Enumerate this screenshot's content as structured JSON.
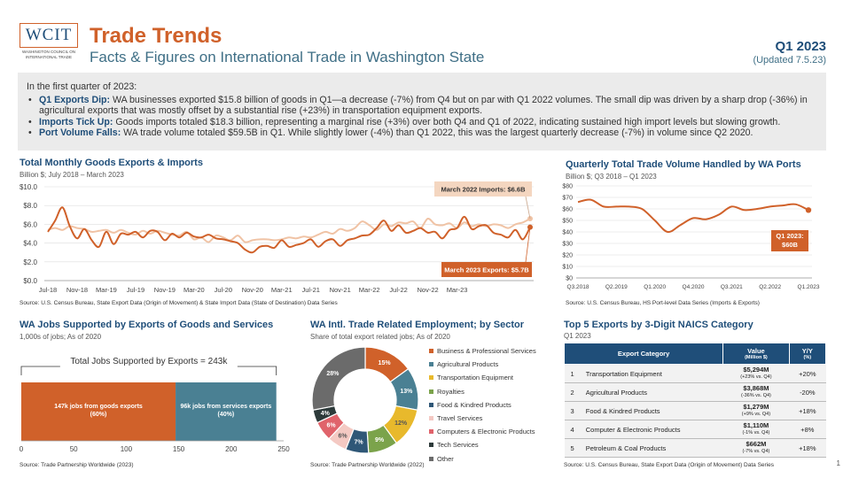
{
  "header": {
    "logo_text": "WCIT",
    "logo_sub": "WASHINGTON COUNCIL ON INTERNATIONAL TRADE",
    "title": "Trade Trends",
    "subtitle": "Facts & Figures on International Trade in Washington State",
    "quarter": "Q1 2023",
    "updated": "(Updated 7.5.23)"
  },
  "summary": {
    "intro": "In the first quarter of 2023:",
    "bullets": [
      {
        "lead": "Q1 Exports Dip:",
        "text": " WA businesses exported $15.8 billion of goods in Q1—a decrease (-7%) from Q4 but on par with Q1 2022 volumes. The small dip was driven by a sharp drop (-36%) in agricultural exports that was mostly offset by a substantial rise (+23%) in transportation equipment exports."
      },
      {
        "lead": "Imports Tick Up:",
        "text": " Goods imports totaled $18.3 billion, representing a marginal rise (+3%) over both Q4 and Q1 of 2022, indicating sustained high import levels but slowing growth."
      },
      {
        "lead": "Port Volume Falls:",
        "text": " WA trade volume totaled $59.5B in Q1. While slightly lower (-4%) than Q1 2022, this was the largest quarterly decrease (-7%) in volume since Q2 2020."
      }
    ]
  },
  "monthly": {
    "title": "Total Monthly Goods Exports & Imports",
    "subtitle": "Billion $; July 2018 – March 2023",
    "source": "Source: U.S. Census Bureau, State Export Data (Origin of Movement) & State Import Data (State of Destination) Data Series",
    "callout_imports": "March 2022 Imports: $6.6B",
    "callout_exports": "March 2023 Exports: $5.7B"
  },
  "quarterly": {
    "title": "Quarterly Total Trade Volume Handled by WA Ports",
    "subtitle": "Billion $; Q3 2018 – Q1 2023",
    "source": "Source: U.S. Census Bureau, HS Port-level Data Series (Imports & Exports)",
    "callout_line1": "Q1 2023:",
    "callout_line2": "$60B"
  },
  "jobs": {
    "title": "WA Jobs Supported by Exports of Goods and Services",
    "subtitle": "1,000s of jobs; As of 2020",
    "total_label": "Total Jobs Supported by Exports = 243k",
    "source": "Source: Trade Partnership Worldwide (2023)"
  },
  "sector": {
    "title": "WA Intl. Trade Related Employment; by Sector",
    "subtitle": "Share of total export related jobs; As of 2020",
    "source": "Source: Trade Partnership Worldwide (2022)"
  },
  "top5": {
    "title": "Top 5 Exports by 3-Digit NAICS Category",
    "subtitle": "Q1 2023",
    "source": "Source: U.S. Census Bureau, State Export Data (Origin of Movement) Data Series",
    "col_category": "Export Category",
    "col_value": "Value",
    "col_value_sub": "(Million $)",
    "col_yy": "Y/Y",
    "col_yy_sub": "(%)",
    "rows": [
      {
        "rank": "1",
        "category": "Transportation Equipment",
        "value": "$5,294M",
        "change": "(+23% vs. Q4)",
        "yy": "+20%"
      },
      {
        "rank": "2",
        "category": "Agricultural Products",
        "value": "$3,868M",
        "change": "(-36% vs. Q4)",
        "yy": "-20%"
      },
      {
        "rank": "3",
        "category": "Food & Kindred Products",
        "value": "$1,279M",
        "change": "(+9% vs. Q4)",
        "yy": "+18%"
      },
      {
        "rank": "4",
        "category": "Computer & Electronic Products",
        "value": "$1,110M",
        "change": "(-1% vs. Q4)",
        "yy": "+8%"
      },
      {
        "rank": "5",
        "category": "Petroleum & Coal Products",
        "value": "$662M",
        "change": "(-7% vs. Q4)",
        "yy": "+18%"
      }
    ]
  },
  "page_number": "1",
  "colors": {
    "orange": "#d0612a",
    "navy": "#1f4e79",
    "teal": "#4a8093",
    "peach": "#f0c3a5"
  },
  "chart_data": [
    {
      "type": "line",
      "title": "Total Monthly Goods Exports & Imports",
      "ylabel": "Billion $",
      "ylim": [
        0,
        10
      ],
      "yticks": [
        "$0.0",
        "$2.0",
        "$4.0",
        "$6.0",
        "$8.0",
        "$10.0"
      ],
      "xticks": [
        "Jul-18",
        "Nov-18",
        "Mar-19",
        "Jul-19",
        "Nov-19",
        "Mar-20",
        "Jul-20",
        "Nov-20",
        "Mar-21",
        "Jul-21",
        "Nov-21",
        "Mar-22",
        "Jul-22",
        "Nov-22",
        "Mar-23"
      ],
      "series": [
        {
          "name": "Exports",
          "color": "#d0612a",
          "values": [
            5.2,
            6.4,
            7.8,
            5.8,
            4.5,
            5.5,
            4.3,
            3.6,
            5.2,
            3.9,
            5.0,
            4.9,
            5.2,
            4.6,
            5.3,
            5.2,
            4.3,
            5.0,
            4.6,
            5.1,
            4.7,
            4.6,
            4.9,
            4.5,
            4.4,
            4.2,
            4.0,
            3.3,
            3.0,
            3.6,
            3.7,
            3.5,
            4.3,
            3.6,
            3.8,
            4.0,
            4.4,
            3.6,
            4.2,
            4.4,
            3.7,
            4.3,
            4.5,
            4.8,
            4.9,
            5.6,
            6.4,
            5.3,
            5.9,
            5.1,
            5.3,
            5.6,
            5.1,
            5.2,
            4.5,
            5.4,
            5.6,
            6.8,
            5.5,
            5.8,
            5.9,
            5.1,
            4.9,
            4.6,
            5.4,
            4.4,
            5.7
          ]
        },
        {
          "name": "Imports",
          "color": "#f0c3a5",
          "values": [
            5.4,
            5.6,
            5.4,
            5.8,
            5.6,
            5.5,
            5.2,
            5.3,
            5.4,
            5.1,
            5.4,
            5.1,
            4.9,
            5.3,
            5.0,
            5.3,
            5.1,
            4.9,
            4.8,
            5.2,
            4.4,
            4.6,
            4.1,
            4.8,
            4.6,
            4.3,
            4.8,
            4.1,
            4.3,
            4.4,
            4.4,
            4.3,
            4.4,
            4.6,
            4.5,
            4.7,
            4.6,
            4.9,
            5.2,
            5.0,
            5.5,
            5.3,
            5.6,
            6.3,
            5.9,
            5.4,
            6.0,
            5.8,
            6.2,
            6.1,
            6.3,
            5.6,
            6.6,
            6.0,
            5.9,
            6.1,
            5.6,
            6.2,
            5.8,
            6.0,
            5.8,
            6.0,
            5.9,
            5.6,
            6.0,
            6.2,
            6.6
          ]
        }
      ]
    },
    {
      "type": "line",
      "title": "Quarterly Total Trade Volume Handled by WA Ports",
      "ylabel": "Billion $",
      "ylim": [
        0,
        80
      ],
      "yticks": [
        "$0",
        "$10",
        "$20",
        "$30",
        "$40",
        "$50",
        "$60",
        "$70",
        "$80"
      ],
      "xticks": [
        "Q3.2018",
        "Q2.2019",
        "Q1.2020",
        "Q4.2020",
        "Q3.2021",
        "Q2.2022",
        "Q1.2023"
      ],
      "series": [
        {
          "name": "Trade Volume",
          "color": "#d0612a",
          "values": [
            66,
            68,
            62,
            62,
            62,
            60,
            50,
            40,
            46,
            52,
            51,
            55,
            62,
            59,
            60,
            62,
            63,
            64,
            59
          ]
        }
      ]
    },
    {
      "type": "bar",
      "title": "WA Jobs Supported by Exports of Goods and Services",
      "xlim": [
        0,
        250
      ],
      "xticks": [
        "0",
        "50",
        "100",
        "150",
        "200",
        "250"
      ],
      "segments": [
        {
          "label": "147k jobs from goods exports",
          "pct": "(60%)",
          "value": 147,
          "color": "#d0612a"
        },
        {
          "label": "96k jobs from services exports",
          "pct": "(40%)",
          "value": 96,
          "color": "#4a8093"
        }
      ]
    },
    {
      "type": "pie",
      "title": "WA Intl. Trade Related Employment; by Sector",
      "slices": [
        {
          "name": "Business & Professional Services",
          "value": 15,
          "label": "15%",
          "color": "#d0612a"
        },
        {
          "name": "Agricultural Products",
          "value": 13,
          "label": "13%",
          "color": "#4a8093"
        },
        {
          "name": "Transportation Equipment",
          "value": 12,
          "label": "12%",
          "color": "#e8b92c"
        },
        {
          "name": "Royalties",
          "value": 9,
          "label": "9%",
          "color": "#7ba34b"
        },
        {
          "name": "Food & Kindred Products",
          "value": 7,
          "label": "7%",
          "color": "#2f5777"
        },
        {
          "name": "Travel Services",
          "value": 6,
          "label": "6%",
          "color": "#f4c9c3"
        },
        {
          "name": "Computers & Electronic Products",
          "value": 6,
          "label": "6%",
          "color": "#e0636b"
        },
        {
          "name": "Tech Services",
          "value": 4,
          "label": "4%",
          "color": "#2d3a3a"
        },
        {
          "name": "Other",
          "value": 28,
          "label": "28%",
          "color": "#6b6b6b"
        }
      ]
    }
  ]
}
